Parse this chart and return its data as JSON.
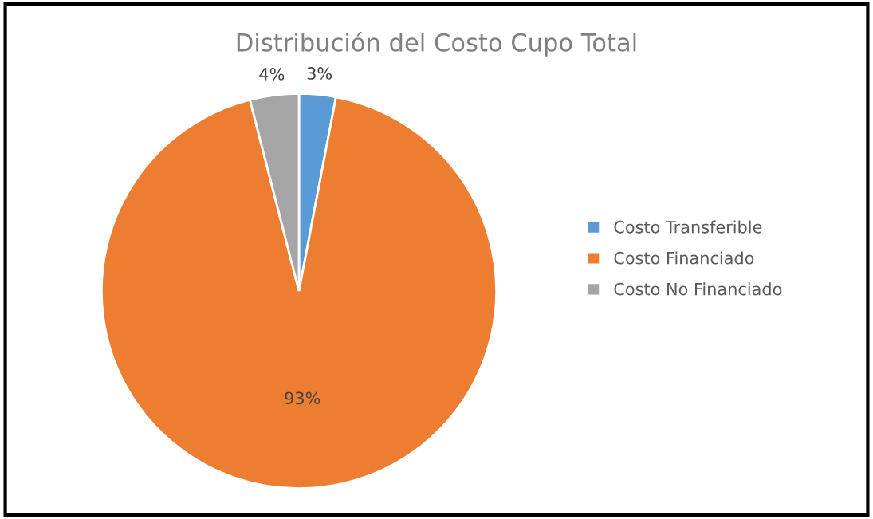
{
  "chart_data": {
    "type": "pie",
    "title": "Distribución del Costo Cupo Total",
    "categories": [
      "Costo Transferible",
      "Costo Financiado",
      "Costo No Financiado"
    ],
    "values": [
      3,
      93,
      4
    ],
    "colors": [
      "#5b9bd5",
      "#ed7d31",
      "#a5a5a5"
    ],
    "value_labels": [
      "3%",
      "93%",
      "4%"
    ],
    "legend": "right"
  }
}
